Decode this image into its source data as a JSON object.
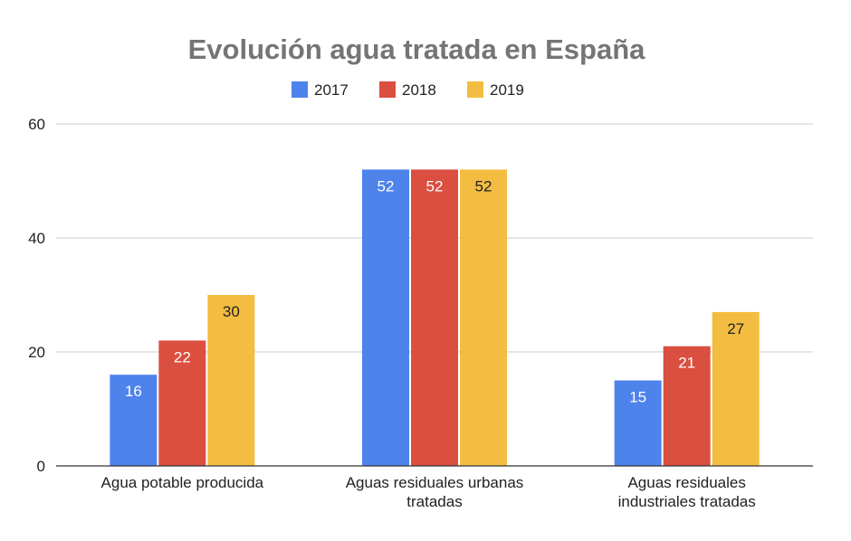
{
  "chart_data": {
    "type": "bar",
    "title": "Evolución agua tratada en España",
    "xlabel": "",
    "ylabel": "",
    "categories": [
      [
        "Agua potable producida"
      ],
      [
        "Aguas residuales urbanas",
        "tratadas"
      ],
      [
        "Aguas residuales",
        "industriales tratadas"
      ]
    ],
    "series": [
      {
        "name": "2017",
        "values": [
          16,
          52,
          15
        ],
        "color": "#4e83ec",
        "label_color": "#ffffff"
      },
      {
        "name": "2018",
        "values": [
          22,
          52,
          21
        ],
        "color": "#da4f3f",
        "label_color": "#ffffff"
      },
      {
        "name": "2019",
        "values": [
          30,
          52,
          27
        ],
        "color": "#f3bd41",
        "label_color": "#222222"
      }
    ],
    "ylim": [
      0,
      60
    ],
    "yticks": [
      0,
      20,
      40,
      60
    ],
    "grid": true,
    "legend_position": "top-center"
  }
}
